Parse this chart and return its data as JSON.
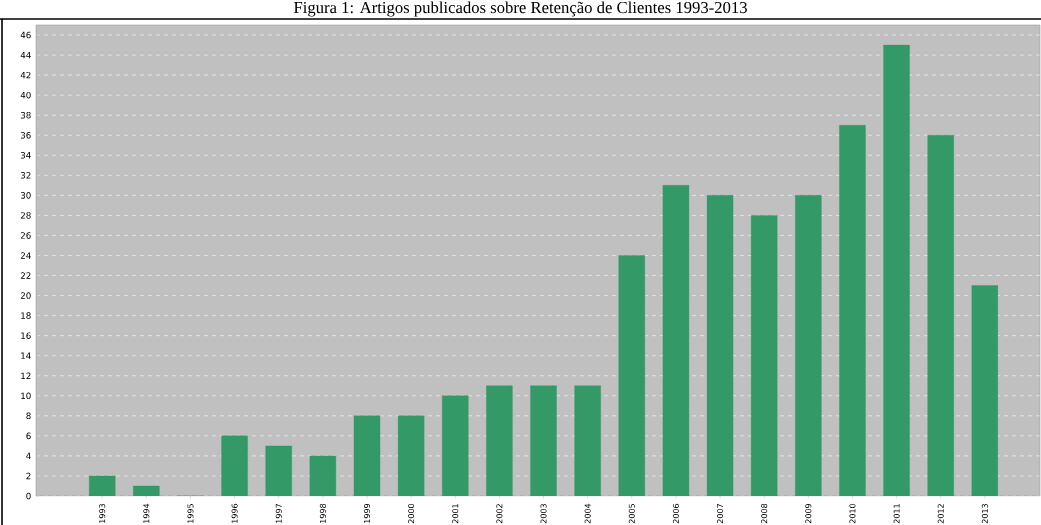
{
  "chart_data": {
    "type": "bar",
    "title": "Figura 1: Artigos publicados sobre Retenção de Clientes 1993-2013",
    "categories": [
      "1993",
      "1994",
      "1995",
      "1996",
      "1997",
      "1998",
      "1999",
      "2000",
      "2001",
      "2002",
      "2003",
      "2004",
      "2005",
      "2006",
      "2007",
      "2008",
      "2009",
      "2010",
      "2011",
      "2012",
      "2013"
    ],
    "values": [
      2,
      1,
      0,
      6,
      5,
      4,
      8,
      8,
      10,
      11,
      11,
      11,
      24,
      31,
      30,
      28,
      30,
      37,
      45,
      36,
      21
    ],
    "color": "#339966",
    "ylim": [
      0,
      47
    ],
    "yticks": [
      0,
      2,
      4,
      6,
      8,
      10,
      12,
      14,
      16,
      18,
      20,
      22,
      24,
      26,
      28,
      30,
      32,
      34,
      36,
      38,
      40,
      42,
      44,
      46
    ],
    "grid": "y"
  }
}
